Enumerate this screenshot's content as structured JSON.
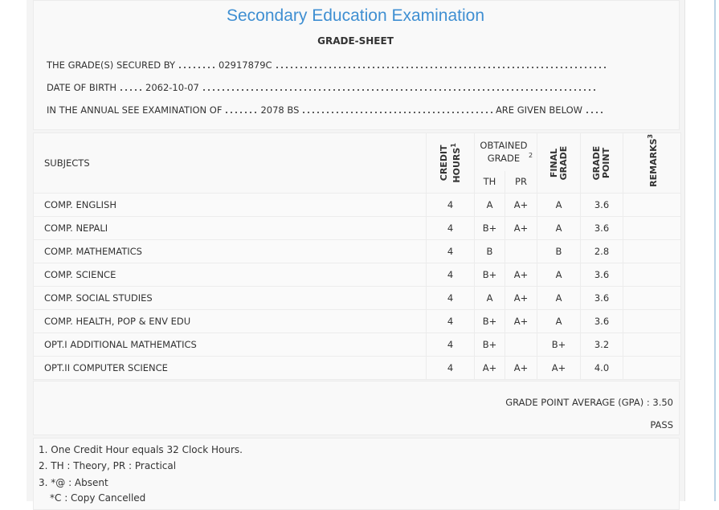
{
  "header": {
    "title": "Secondary Education Examination",
    "subtitle": "GRADE-SHEET"
  },
  "info": [
    {
      "label": "THE GRADE(S) SECURED BY",
      "value": "02917879C"
    },
    {
      "label": "DATE OF BIRTH",
      "value": "2062-10-07"
    },
    {
      "label": "IN THE ANNUAL SEE EXAMINATION OF",
      "value": "2078 BS",
      "suffix": "ARE GIVEN BELOW"
    }
  ],
  "table": {
    "headers": {
      "subjects": "SUBJECTS",
      "credit": "CREDIT HOURS",
      "credit_note": "1",
      "obtained": "OBTAINED GRADE",
      "obtained_note": "2",
      "th": "TH",
      "pr": "PR",
      "final": "FINAL GRADE",
      "gp": "GRADE POINT",
      "remarks": "REMARKS",
      "remarks_note": "3"
    },
    "rows": [
      {
        "subject": "COMP. ENGLISH",
        "credit": "4",
        "th": "A",
        "pr": "A+",
        "final": "A",
        "gp": "3.6"
      },
      {
        "subject": "COMP. NEPALI",
        "credit": "4",
        "th": "B+",
        "pr": "A+",
        "final": "A",
        "gp": "3.6"
      },
      {
        "subject": "COMP. MATHEMATICS",
        "credit": "4",
        "th": "B",
        "pr": null,
        "final": "B",
        "gp": "2.8"
      },
      {
        "subject": "COMP. SCIENCE",
        "credit": "4",
        "th": "B+",
        "pr": "A+",
        "final": "A",
        "gp": "3.6"
      },
      {
        "subject": "COMP. SOCIAL STUDIES",
        "credit": "4",
        "th": "A",
        "pr": "A+",
        "final": "A",
        "gp": "3.6"
      },
      {
        "subject": "COMP. HEALTH, POP & ENV EDU",
        "credit": "4",
        "th": "B+",
        "pr": "A+",
        "final": "A",
        "gp": "3.6"
      },
      {
        "subject": "OPT.I ADDITIONAL MATHEMATICS",
        "credit": "4",
        "th": "B+",
        "pr": null,
        "final": "B+",
        "gp": "3.2"
      },
      {
        "subject": "OPT.II COMPUTER SCIENCE",
        "credit": "4",
        "th": "A+",
        "pr": "A+",
        "final": "A+",
        "gp": "4.0"
      }
    ]
  },
  "summary": {
    "gpa_label": "GRADE POINT AVERAGE (GPA) :",
    "gpa": "3.50",
    "result": "PASS"
  },
  "notes": [
    "1. One Credit Hour equals 32 Clock Hours.",
    "2. TH : Theory, PR : Practical",
    "3. *@ : Absent",
    "*C : Copy Cancelled"
  ]
}
